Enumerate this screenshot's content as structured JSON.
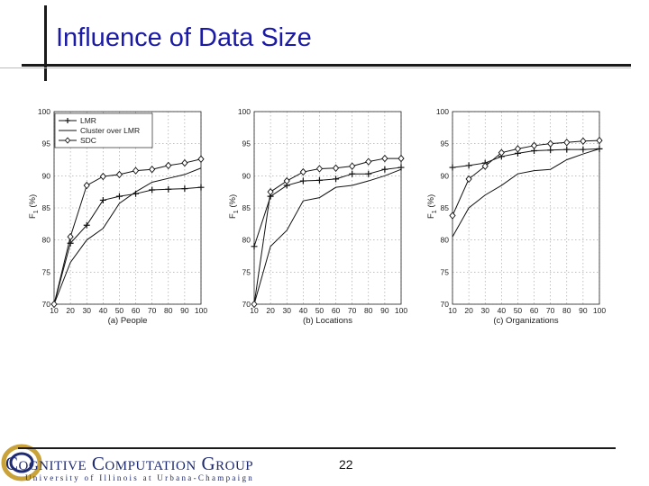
{
  "slide": {
    "title": "Influence of Data Size",
    "page_number": "22",
    "footer_logo_line1": "Cognitive Computation Group",
    "footer_logo_line2": "University of Illinois at Urbana-Champaign"
  },
  "chart_data": [
    {
      "type": "line",
      "subtitle": "(a) People",
      "ylabel": "F1 (%)",
      "ylabel_main": "F",
      "ylabel_sub": "1",
      "ylabel_unit": "(%)",
      "x": [
        10,
        20,
        30,
        40,
        50,
        60,
        70,
        80,
        90,
        100
      ],
      "xlim": [
        10,
        100
      ],
      "ylim": [
        70,
        100
      ],
      "xticks": [
        "10",
        "20",
        "30",
        "40",
        "50",
        "60",
        "70",
        "80",
        "90",
        "100"
      ],
      "yticks": [
        "70",
        "75",
        "80",
        "85",
        "90",
        "95",
        "100"
      ],
      "grid": true,
      "legend": {
        "placement": "top-left",
        "entries": [
          "LMR",
          "Cluster over LMR",
          "SDC"
        ]
      },
      "series": [
        {
          "name": "LMR",
          "marker": "plus",
          "values": [
            70.0,
            79.5,
            82.3,
            86.2,
            86.8,
            87.2,
            87.8,
            87.9,
            88.0,
            88.2
          ]
        },
        {
          "name": "Cluster over LMR",
          "marker": "none",
          "values": [
            70.0,
            76.5,
            80.0,
            81.8,
            85.7,
            87.5,
            89.0,
            89.6,
            90.2,
            91.2
          ]
        },
        {
          "name": "SDC",
          "marker": "diamond",
          "values": [
            70.0,
            80.5,
            88.5,
            89.9,
            90.2,
            90.8,
            91.0,
            91.6,
            92.0,
            92.6
          ]
        }
      ]
    },
    {
      "type": "line",
      "subtitle": "(b) Locations",
      "ylabel": "F1 (%)",
      "ylabel_main": "F",
      "ylabel_sub": "1",
      "ylabel_unit": "(%)",
      "x": [
        10,
        20,
        30,
        40,
        50,
        60,
        70,
        80,
        90,
        100
      ],
      "xlim": [
        10,
        100
      ],
      "ylim": [
        70,
        100
      ],
      "xticks": [
        "10",
        "20",
        "30",
        "40",
        "50",
        "60",
        "70",
        "80",
        "90",
        "100"
      ],
      "yticks": [
        "70",
        "75",
        "80",
        "85",
        "90",
        "95",
        "100"
      ],
      "grid": true,
      "series": [
        {
          "name": "LMR",
          "marker": "plus",
          "values": [
            79.0,
            86.8,
            88.5,
            89.2,
            89.3,
            89.5,
            90.3,
            90.3,
            91.0,
            91.3
          ]
        },
        {
          "name": "Cluster over LMR",
          "marker": "none",
          "values": [
            70.0,
            79.0,
            81.5,
            86.1,
            86.6,
            88.2,
            88.5,
            89.2,
            90.0,
            91.0
          ]
        },
        {
          "name": "SDC",
          "marker": "diamond",
          "values": [
            70.0,
            87.5,
            89.2,
            90.6,
            91.1,
            91.2,
            91.5,
            92.2,
            92.7,
            92.7
          ]
        }
      ]
    },
    {
      "type": "line",
      "subtitle": "(c) Organizations",
      "ylabel": "F1 (%)",
      "ylabel_main": "F",
      "ylabel_sub": "1",
      "ylabel_unit": "(%)",
      "x": [
        10,
        20,
        30,
        40,
        50,
        60,
        70,
        80,
        90,
        100
      ],
      "xlim": [
        10,
        100
      ],
      "ylim": [
        70,
        100
      ],
      "xticks": [
        "10",
        "20",
        "30",
        "40",
        "50",
        "60",
        "70",
        "80",
        "90",
        "100"
      ],
      "yticks": [
        "70",
        "75",
        "80",
        "85",
        "90",
        "95",
        "100"
      ],
      "grid": true,
      "series": [
        {
          "name": "LMR",
          "marker": "plus",
          "values": [
            91.3,
            91.6,
            92.0,
            93.0,
            93.5,
            93.9,
            94.0,
            94.1,
            94.1,
            94.2
          ]
        },
        {
          "name": "Cluster over LMR",
          "marker": "none",
          "values": [
            80.5,
            85.0,
            87.0,
            88.5,
            90.3,
            90.8,
            91.0,
            92.5,
            93.4,
            94.2
          ]
        },
        {
          "name": "SDC",
          "marker": "diamond",
          "values": [
            83.8,
            89.5,
            91.5,
            93.6,
            94.2,
            94.7,
            95.0,
            95.2,
            95.4,
            95.5
          ]
        }
      ]
    }
  ]
}
